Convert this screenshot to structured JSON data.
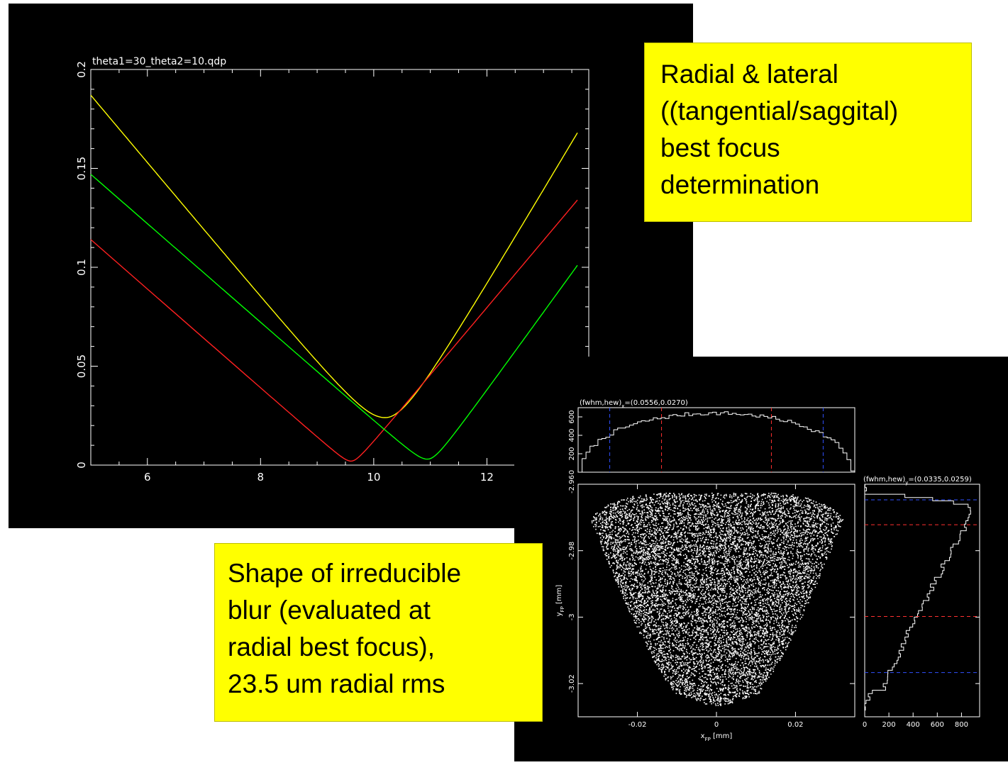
{
  "callouts": {
    "top": "Radial & lateral\n((tangential/saggital)\nbest focus\ndetermination",
    "bottom": "Shape of irreducible\nblur (evaluated at\nradial best focus),\n23.5 um radial rms"
  },
  "chart_data": [
    {
      "type": "line",
      "title": "theta1=30_theta2=10.qdp",
      "xlim": [
        5,
        13.8
      ],
      "ylim": [
        0,
        0.2
      ],
      "xticks": [
        6,
        8,
        10,
        12
      ],
      "xtick_labels": [
        "6",
        "8",
        "10",
        "12"
      ],
      "yticks": [
        0,
        0.05,
        0.1,
        0.15,
        0.2
      ],
      "ytick_labels": [
        "0",
        "0.05",
        "0.1",
        "0.15",
        "0.2"
      ],
      "grid": false,
      "series": [
        {
          "color": "#ffff00",
          "x": [
            5,
            10.2,
            13.6
          ],
          "y": [
            0.187,
            0.024,
            0.168
          ],
          "vertex_width": 0.45
        },
        {
          "color": "#ff2020",
          "x": [
            5,
            9.6,
            13.6
          ],
          "y": [
            0.114,
            0.002,
            0.134
          ],
          "vertex_width": 0.12
        },
        {
          "color": "#00ff00",
          "x": [
            5,
            10.95,
            13.6
          ],
          "y": [
            0.147,
            0.003,
            0.101
          ],
          "vertex_width": 0.18
        }
      ]
    },
    {
      "type": "histogram",
      "title": "(fwhm,hew)x=(0.0556,0.0270)",
      "title_parts": {
        "pre": "(fwhm,hew)",
        "sub": "x",
        "post": "=(0.0556,0.0270)"
      },
      "xlim": [
        -0.035,
        0.035
      ],
      "ylim": [
        0,
        700
      ],
      "yticks": [
        0,
        200,
        400,
        600
      ],
      "ytick_labels": [
        "0",
        "200",
        "400",
        "600"
      ],
      "blue_lines": [
        -0.027,
        0.027
      ],
      "red_lines": [
        -0.0139,
        0.0139
      ]
    },
    {
      "type": "scatter",
      "xlabel": "x",
      "xlabel_sub": "FP",
      "xlabel_unit": " [mm]",
      "ylabel": "y",
      "ylabel_sub": "FP",
      "ylabel_unit": " [mm]",
      "xlim": [
        -0.035,
        0.035
      ],
      "ylim": [
        -3.03,
        -2.96
      ],
      "xticks": [
        -0.02,
        0,
        0.02
      ],
      "xtick_labels": [
        "-0.02",
        "0",
        "0.02"
      ],
      "yticks": [
        -3.02,
        -3,
        -2.98,
        -2.96
      ],
      "ytick_labels": [
        "-3.02",
        "-3",
        "-2.98",
        "-2.96"
      ],
      "n_points": 9000
    },
    {
      "type": "histogram",
      "title": "(fwhm,hew)y=(0.0335,0.0259)",
      "title_parts": {
        "pre": "(fwhm,hew)",
        "sub": "y",
        "post": "=(0.0335,0.0259)"
      },
      "orientation": "horizontal",
      "xlim": [
        0,
        950
      ],
      "xticks": [
        0,
        200,
        400,
        600,
        800
      ],
      "xtick_labels": [
        "0",
        "200",
        "400",
        "600",
        "800"
      ],
      "ylim": [
        -3.03,
        -2.96
      ],
      "blue_lines": [
        -2.9647,
        -3.0167
      ],
      "red_lines": [
        -2.9722,
        -2.9998
      ]
    }
  ]
}
